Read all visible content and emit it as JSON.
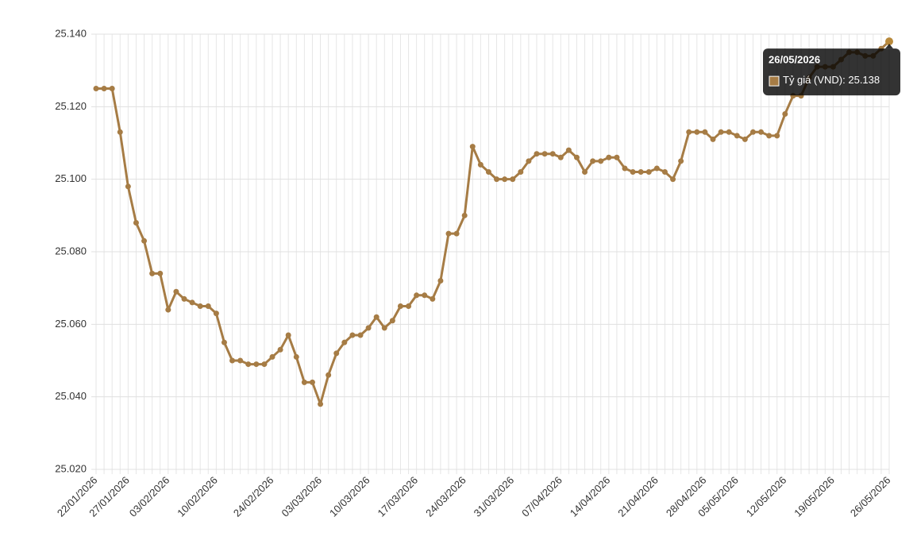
{
  "chart_data": {
    "type": "line",
    "categories": [
      "22/01/2026",
      null,
      null,
      null,
      "27/01/2026",
      null,
      null,
      null,
      null,
      "03/02/2026",
      null,
      null,
      null,
      null,
      null,
      "10/02/2026",
      null,
      null,
      null,
      null,
      null,
      null,
      "24/02/2026",
      null,
      null,
      null,
      null,
      null,
      "03/03/2026",
      null,
      null,
      null,
      null,
      null,
      "10/03/2026",
      null,
      null,
      null,
      null,
      null,
      "17/03/2026",
      null,
      null,
      null,
      null,
      null,
      "24/03/2026",
      null,
      null,
      null,
      null,
      null,
      "31/03/2026",
      null,
      null,
      null,
      null,
      null,
      "07/04/2026",
      null,
      null,
      null,
      null,
      null,
      "14/04/2026",
      null,
      null,
      null,
      null,
      null,
      "21/04/2026",
      null,
      null,
      null,
      null,
      null,
      "28/04/2026",
      null,
      null,
      null,
      "05/05/2026",
      null,
      null,
      null,
      null,
      null,
      "12/05/2026",
      null,
      null,
      null,
      null,
      null,
      "19/05/2026",
      null,
      null,
      null,
      null,
      null,
      null,
      "26/05/2026"
    ],
    "series": [
      {
        "name": "Tỷ giá (VND)",
        "color": "#a67c45",
        "values": [
          25125,
          25125,
          25125,
          25113,
          25098,
          25088,
          25083,
          25074,
          25074,
          25064,
          25069,
          25067,
          25066,
          25065,
          25065,
          25063,
          25055,
          25050,
          25050,
          25049,
          25049,
          25049,
          25051,
          25053,
          25057,
          25051,
          25044,
          25044,
          25038,
          25046,
          25052,
          25055,
          25057,
          25057,
          25059,
          25062,
          25059,
          25061,
          25065,
          25065,
          25068,
          25068,
          25067,
          25072,
          25085,
          25085,
          25090,
          25109,
          25104,
          25102,
          25100,
          25100,
          25100,
          25102,
          25105,
          25107,
          25107,
          25107,
          25106,
          25108,
          25106,
          25102,
          25105,
          25105,
          25106,
          25106,
          25103,
          25102,
          25102,
          25102,
          25103,
          25102,
          25100,
          25105,
          25113,
          25113,
          25113,
          25111,
          25113,
          25113,
          25112,
          25111,
          25113,
          25113,
          25112,
          25112,
          25118,
          25123,
          25123,
          25128,
          25131,
          25131,
          25131,
          25133,
          25135,
          25135,
          25134,
          25134,
          25136,
          25138
        ]
      }
    ],
    "tooltip_value_label": "25.138",
    "ylim": [
      25020,
      25140
    ],
    "yticks": [
      {
        "value": 25020,
        "label": "25.020"
      },
      {
        "value": 25040,
        "label": "25.040"
      },
      {
        "value": 25060,
        "label": "25.060"
      },
      {
        "value": 25080,
        "label": "25.080"
      },
      {
        "value": 25100,
        "label": "25.100"
      },
      {
        "value": 25120,
        "label": "25.120"
      },
      {
        "value": 25140,
        "label": "25.140"
      }
    ],
    "grid": true
  }
}
